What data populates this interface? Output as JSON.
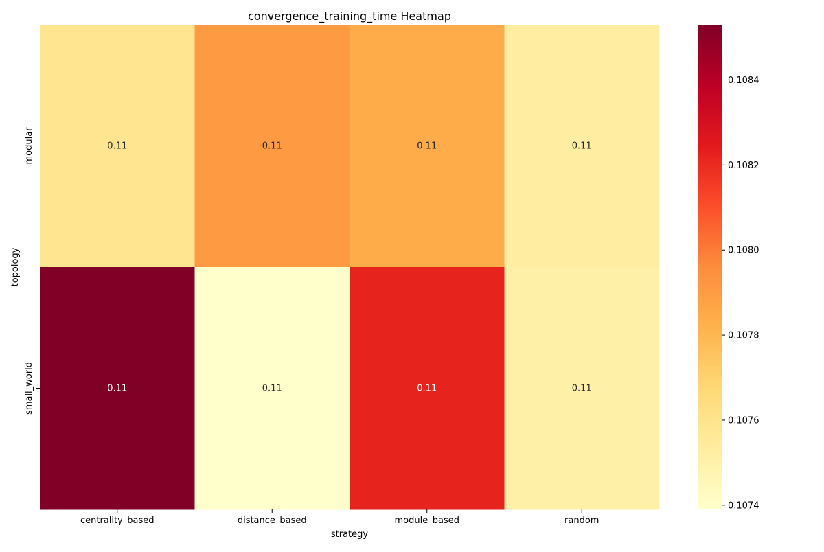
{
  "chart_data": {
    "type": "heatmap",
    "title": "convergence_training_time Heatmap",
    "xlabel": "strategy",
    "ylabel": "topology",
    "x_categories": [
      "centrality_based",
      "distance_based",
      "module_based",
      "random"
    ],
    "y_categories": [
      "modular",
      "small_world"
    ],
    "values": [
      [
        0.10759,
        0.10791,
        0.10784,
        0.10753
      ],
      [
        0.10853,
        0.10739,
        0.10822,
        0.10751
      ]
    ],
    "annotations": [
      [
        "0.11",
        "0.11",
        "0.11",
        "0.11"
      ],
      [
        "0.11",
        "0.11",
        "0.11",
        "0.11"
      ]
    ],
    "colorbar": {
      "colormap": "YlOrRd",
      "range": [
        0.10739,
        0.10853
      ],
      "ticks": [
        0.1074,
        0.1076,
        0.1078,
        0.108,
        0.1082,
        0.1084
      ],
      "tick_labels": [
        "0.1074",
        "0.1076",
        "0.1078",
        "0.1080",
        "0.1082",
        "0.1084"
      ]
    },
    "colormap_stops": [
      "#ffffcc",
      "#ffeda0",
      "#fed976",
      "#feb24c",
      "#fd8d3c",
      "#fc4e2a",
      "#e31a1c",
      "#bd0026",
      "#800026"
    ]
  }
}
